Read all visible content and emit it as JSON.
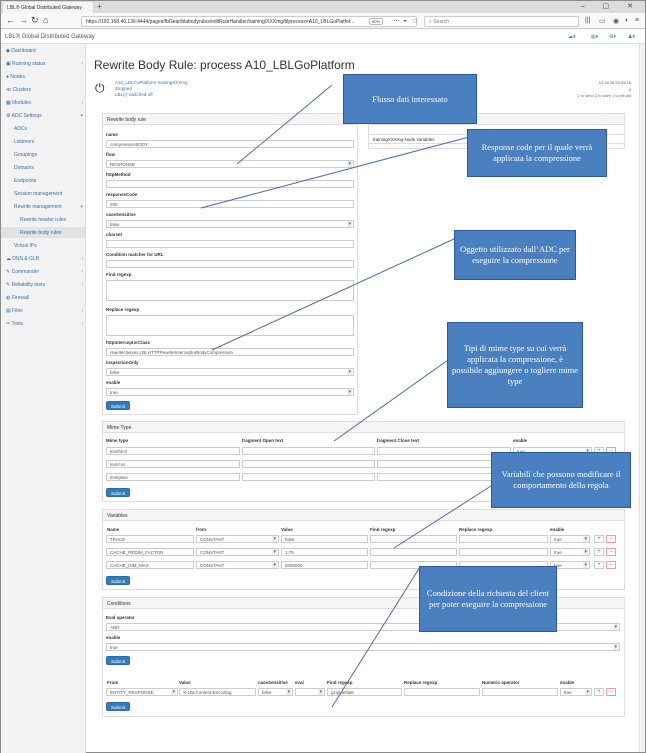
{
  "browser": {
    "tab_title": "LBL® Global Distributed Gateway",
    "url": "https://192.168.46.136:4444/pages/fbGear/blabodyrules/editRuleHandler/training/XXXmg/blprocess=A10_LBLGoPlatfor...",
    "zoom": "90%",
    "search_placeholder": "Search"
  },
  "app": {
    "brand": "LBL® Global Distributed Gateway"
  },
  "sidebar": {
    "items": [
      {
        "label": "Dashboard"
      },
      {
        "label": "Running status"
      },
      {
        "label": "Nodes"
      },
      {
        "label": "Clusters"
      },
      {
        "label": "Modules"
      },
      {
        "label": "ADC Settings"
      },
      {
        "label": "ADCs"
      },
      {
        "label": "Listeners"
      },
      {
        "label": "Groupings"
      },
      {
        "label": "Domains"
      },
      {
        "label": "Endpoints"
      },
      {
        "label": "Session management"
      },
      {
        "label": "Rewrite management"
      },
      {
        "label": "Rewrite header rules"
      },
      {
        "label": "Rewrite body rules"
      },
      {
        "label": "Virtual IPs"
      },
      {
        "label": "DNS & GLB"
      },
      {
        "label": "Commander"
      },
      {
        "label": "Reliability tests"
      },
      {
        "label": "Firewall"
      },
      {
        "label": "Files"
      },
      {
        "label": "Tools"
      }
    ]
  },
  "page": {
    "title": "Rewrite Body Rule: process A10_LBLGoPlatform",
    "node_line1": "A10_LBLGoPlatform trainingXXXmg",
    "node_line2": "Stopped",
    "node_line3": "LBL(r) switched-off",
    "right_line1": "12:18:36 22:09:15",
    "right_line2": "0",
    "right_line3": "1 to send   2 to save   1 to reload"
  },
  "rule": {
    "header": "Rewrite body rule",
    "name_label": "name",
    "name_value": "compressionBODY",
    "flow_label": "flow",
    "flow_value": "RESPONSE",
    "method_label": "httpMethod",
    "method_value": "",
    "responsecode_label": "responseCode",
    "responsecode_value": "200",
    "case_label": "caseSensitive",
    "case_value": "false",
    "charset_label": "charset",
    "charset_value": "",
    "condition_label": "Condition matcher for URL",
    "condition_value": "",
    "find_label": "Find regexp",
    "replace_label": "Replace regexp",
    "interceptor_label": "httpInterceptorClass",
    "interceptor_value": "rewriteclasses.LBLHTTPRewriteInterceptorBodyCompression",
    "inspection_label": "inspectionOnly",
    "inspection_value": "false",
    "enable_label": "enable",
    "enable_value": "true",
    "submit": "Submit"
  },
  "variables_side": {
    "header": "Training variables",
    "item": "trainingXXXmg-Node variables"
  },
  "mime": {
    "header": "Mime Type",
    "cols": [
      "Mime type",
      "fragment Open text",
      "fragment Close text",
      "enable"
    ],
    "rows": [
      {
        "type": "text/html",
        "enable": "true"
      },
      {
        "type": "text/css",
        "enable": "true"
      },
      {
        "type": "text/plain",
        "enable": "true"
      }
    ],
    "submit": "Submit"
  },
  "variables": {
    "header": "Variables",
    "cols": [
      "Name",
      "from",
      "Value",
      "Find regexp",
      "Replace regexp",
      "enable"
    ],
    "rows": [
      {
        "name": "TRACE",
        "from": "CONSTANT",
        "value": "false",
        "enable": "true"
      },
      {
        "name": "CACHE_REDIM_FACTOR",
        "from": "CONSTANT",
        "value": "1.75",
        "enable": "true"
      },
      {
        "name": "CACHE_DIM_MAX",
        "from": "CONSTANT",
        "value": "2000000",
        "enable": "true"
      }
    ],
    "submit": "Submit"
  },
  "conditions": {
    "header": "Conditions",
    "eval_label": "Eval operator",
    "eval_value": "AND",
    "enable_label": "enable",
    "enable_value": "true",
    "submit": "Submit",
    "cols": [
      "From",
      "Value",
      "caseSensitive",
      "eval",
      "Find regexp",
      "Replace regexp",
      "Numeric operator",
      "enable"
    ],
    "row": {
      "from": "ENTITY_RESPONSE",
      "value": "X-LBLContent-Encoding",
      "case": "false",
      "find": "gzip|deflate",
      "enable": "true"
    },
    "submit2": "Submit"
  },
  "callouts": {
    "c1": "Flusso dati interessato",
    "c2": "Response code per il quale verrà applicata la compressione",
    "c3": "Oggetto utilizzato dall’ADC per eseguire la compressione",
    "c4": "Tipi di mime type su cui verrà applicata la compressione, è possibile aggiungere o togliere mime type",
    "c5": "Variabili che possono modificare il comportamento della regola",
    "c6": "Condizione della richiesta del client per poter eseguire la compressione"
  },
  "colors": {
    "accent": "#337ab7",
    "callout": "#4a7fc0",
    "link": "#3570b0"
  }
}
